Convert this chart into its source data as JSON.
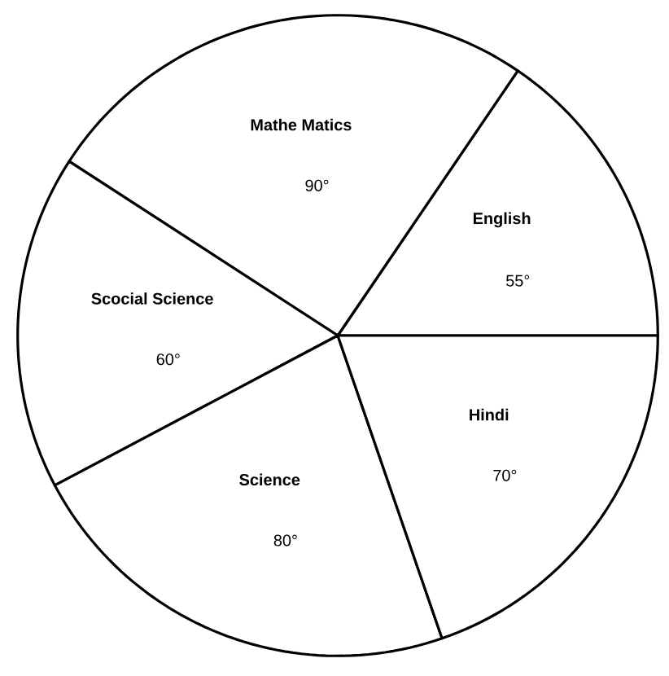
{
  "chart_data": {
    "type": "pie",
    "categories": [
      "English",
      "Mathe Matics",
      "Scocial Science",
      "Science",
      "Hindi"
    ],
    "values": [
      55,
      90,
      60,
      80,
      70
    ],
    "value_labels": [
      "55°",
      "90°",
      "60°",
      "80°",
      "70°"
    ],
    "colors": [
      "#ffffff",
      "#ffffff",
      "#ffffff",
      "#ffffff",
      "#ffffff"
    ]
  }
}
